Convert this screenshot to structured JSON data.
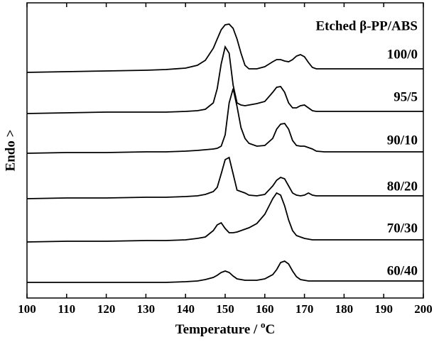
{
  "chart_data": {
    "type": "line",
    "title": "Etched β-PP/ABS",
    "xlabel": {
      "text": "Temperature / ",
      "sup": "o",
      "unit": "C"
    },
    "ylabel": "Endo >",
    "color": "#000000",
    "xlim": [
      100,
      200
    ],
    "xticks": [
      100,
      110,
      120,
      130,
      140,
      150,
      160,
      170,
      180,
      190,
      200
    ],
    "ylim": [
      0,
      416
    ],
    "x": [
      100,
      110,
      120,
      130,
      135,
      140,
      143,
      145,
      147,
      148,
      149,
      150,
      151,
      152,
      153,
      154,
      155,
      156,
      158,
      160,
      162,
      163,
      164,
      165,
      166,
      167,
      168,
      169,
      170,
      171,
      172,
      173,
      175,
      180,
      190,
      200
    ],
    "series": [
      {
        "name": "100/0",
        "values": [
          318,
          319,
          320,
          321,
          322,
          324,
          328,
          335,
          352,
          365,
          378,
          385,
          386,
          380,
          365,
          345,
          328,
          323,
          323,
          326,
          333,
          336,
          336,
          334,
          333,
          336,
          341,
          343,
          340,
          332,
          325,
          323,
          323,
          323,
          323,
          323
        ]
      },
      {
        "name": "95/5",
        "values": [
          260,
          261,
          262,
          262,
          262,
          263,
          264,
          266,
          275,
          295,
          330,
          354,
          345,
          300,
          275,
          272,
          271,
          272,
          274,
          277,
          290,
          297,
          298,
          290,
          275,
          268,
          268,
          271,
          272,
          268,
          264,
          263,
          263,
          263,
          263,
          263
        ]
      },
      {
        "name": "90/10",
        "values": [
          204,
          205,
          205,
          206,
          206,
          207,
          208,
          209,
          210,
          211,
          214,
          230,
          275,
          295,
          270,
          240,
          225,
          218,
          214,
          215,
          225,
          238,
          245,
          246,
          238,
          222,
          215,
          214,
          214,
          212,
          210,
          207,
          206,
          206,
          206,
          206
        ]
      },
      {
        "name": "80/20",
        "values": [
          140,
          141,
          141,
          142,
          142,
          143,
          144,
          146,
          150,
          156,
          175,
          195,
          198,
          175,
          152,
          150,
          148,
          145,
          144,
          146,
          158,
          166,
          170,
          168,
          158,
          148,
          145,
          144,
          145,
          148,
          145,
          144,
          144,
          144,
          144,
          144
        ]
      },
      {
        "name": "70/30",
        "values": [
          79,
          80,
          80,
          81,
          81,
          82,
          84,
          86,
          95,
          103,
          106,
          98,
          92,
          92,
          93,
          95,
          97,
          99,
          105,
          118,
          140,
          148,
          145,
          130,
          110,
          95,
          88,
          86,
          84,
          83,
          82,
          82,
          82,
          82,
          82,
          82
        ]
      },
      {
        "name": "60/40",
        "values": [
          22,
          22,
          22,
          22,
          22,
          23,
          24,
          26,
          29,
          32,
          36,
          38,
          36,
          31,
          27,
          26,
          25,
          25,
          25,
          27,
          33,
          40,
          50,
          52,
          48,
          38,
          30,
          26,
          25,
          24,
          24,
          24,
          24,
          24,
          24,
          24
        ]
      }
    ]
  }
}
